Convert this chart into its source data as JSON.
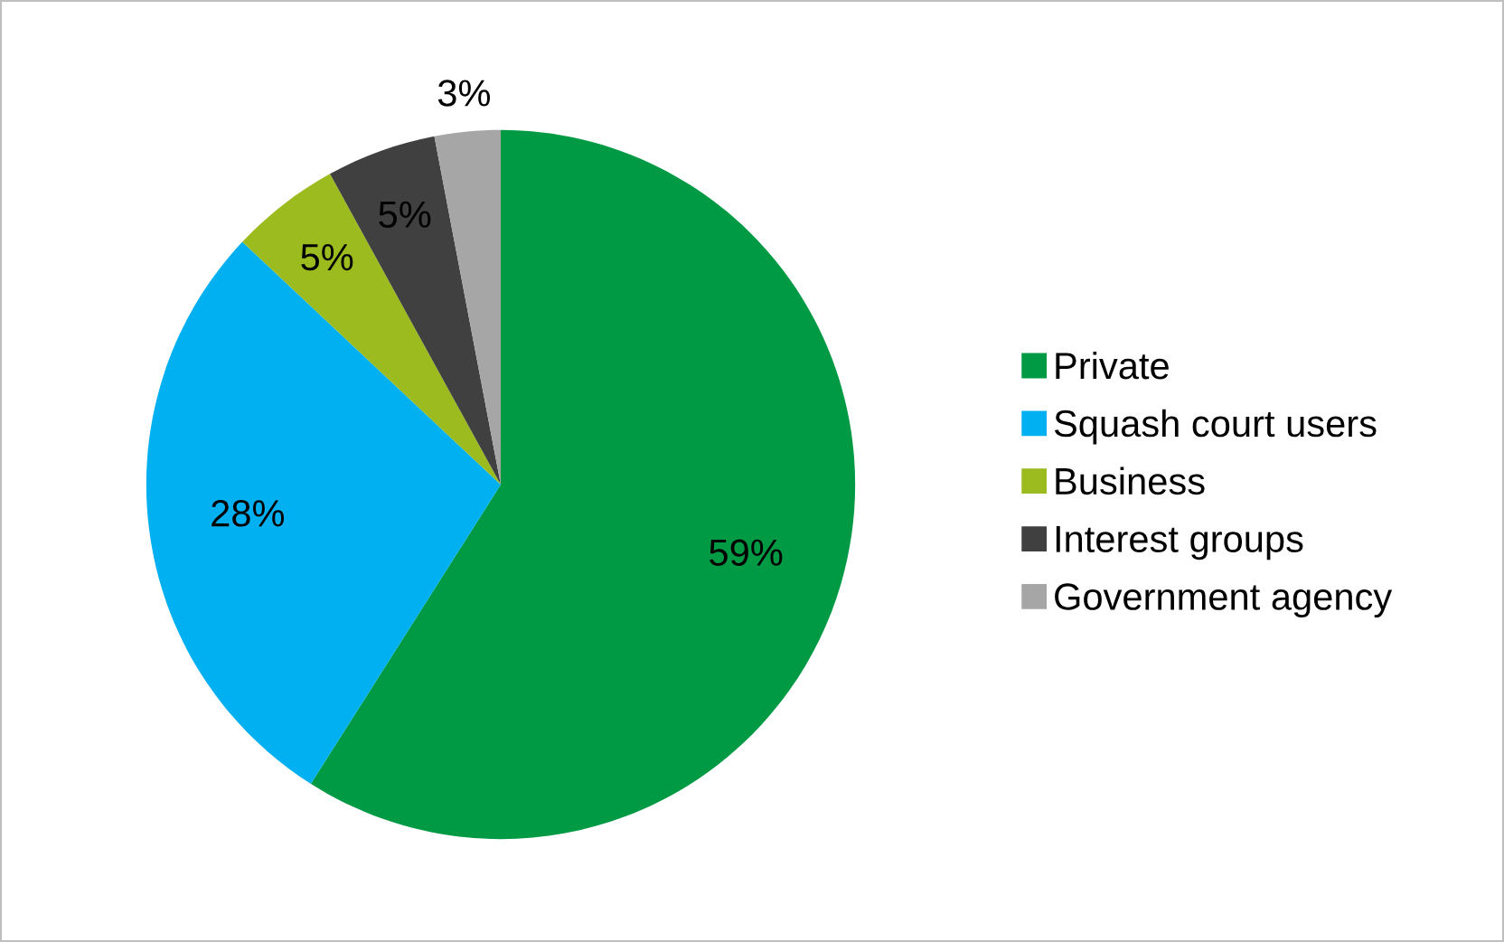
{
  "chart_data": {
    "type": "pie",
    "categories": [
      "Private",
      "Squash court users",
      "Business",
      "Interest groups",
      "Government agency"
    ],
    "values": [
      59,
      28,
      5,
      5,
      3
    ],
    "colors": [
      "#009a44",
      "#00b0f0",
      "#9bbb1f",
      "#404040",
      "#a6a6a6"
    ],
    "value_labels": [
      "59%",
      "28%",
      "5%",
      "5%",
      "3%"
    ],
    "legend": "right"
  }
}
